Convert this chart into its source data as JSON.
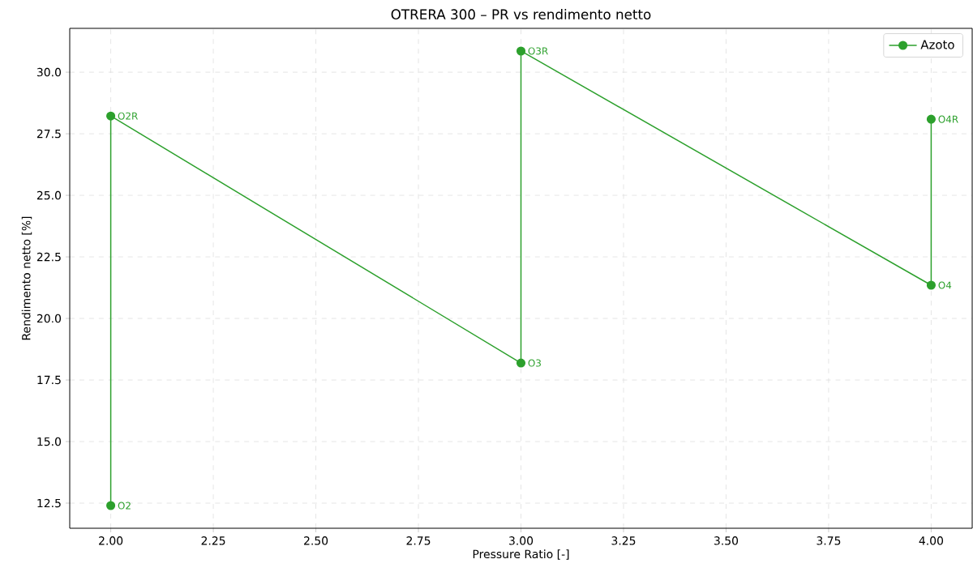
{
  "chart_data": {
    "type": "line",
    "title": "OTRERA 300 – PR vs rendimento netto",
    "xlabel": "Pressure Ratio [-]",
    "ylabel": "Rendimento netto [%]",
    "series": [
      {
        "name": "Azoto",
        "color": "#2ca02c",
        "x": [
          2,
          2,
          3,
          3,
          4,
          4
        ],
        "values": [
          12.4,
          28.22,
          18.19,
          30.86,
          21.35,
          28.09
        ]
      }
    ],
    "annotations": [
      {
        "text": "O2",
        "x": 2,
        "y": 12.4
      },
      {
        "text": "O2R",
        "x": 2,
        "y": 28.22
      },
      {
        "text": "O3",
        "x": 3,
        "y": 18.19
      },
      {
        "text": "O3R",
        "x": 3,
        "y": 30.86
      },
      {
        "text": "O4",
        "x": 4,
        "y": 21.35
      },
      {
        "text": "O4R",
        "x": 4,
        "y": 28.09
      }
    ],
    "xlim": [
      1.9,
      4.1
    ],
    "ylim": [
      11.48,
      31.78
    ],
    "xticks": [
      {
        "value": 2,
        "label": "2.00"
      },
      {
        "value": 2.25,
        "label": "2.25"
      },
      {
        "value": 2.5,
        "label": "2.50"
      },
      {
        "value": 2.75,
        "label": "2.75"
      },
      {
        "value": 3,
        "label": "3.00"
      },
      {
        "value": 3.25,
        "label": "3.25"
      },
      {
        "value": 3.5,
        "label": "3.50"
      },
      {
        "value": 3.75,
        "label": "3.75"
      },
      {
        "value": 4,
        "label": "4.00"
      }
    ],
    "yticks": [
      {
        "value": 12.5,
        "label": "12.5"
      },
      {
        "value": 15,
        "label": "15.0"
      },
      {
        "value": 17.5,
        "label": "17.5"
      },
      {
        "value": 20,
        "label": "20.0"
      },
      {
        "value": 22.5,
        "label": "22.5"
      },
      {
        "value": 25,
        "label": "25.0"
      },
      {
        "value": 27.5,
        "label": "27.5"
      },
      {
        "value": 30,
        "label": "30.0"
      }
    ],
    "grid": true,
    "legend": "top right",
    "marker": "circle",
    "line_style": "solid"
  }
}
